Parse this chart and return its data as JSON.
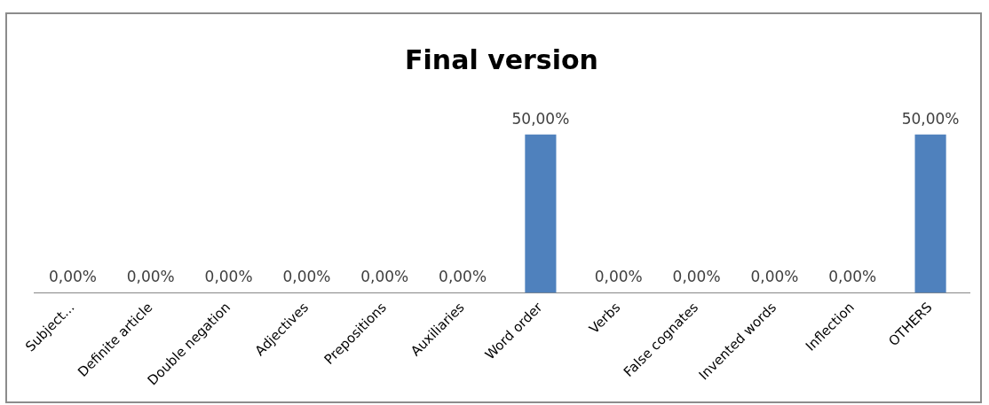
{
  "chart_data": {
    "type": "bar",
    "title": "Final version",
    "categories": [
      "Subject...",
      "Definite article",
      "Double negation",
      "Adjectives",
      "Prepositions",
      "Auxiliaries",
      "Word order",
      "Verbs",
      "False cognates",
      "Invented words",
      "Inflection",
      "OTHERS"
    ],
    "values": [
      0,
      0,
      0,
      0,
      0,
      0,
      50,
      0,
      0,
      0,
      0,
      50
    ],
    "value_labels": [
      "0,00%",
      "0,00%",
      "0,00%",
      "0,00%",
      "0,00%",
      "0,00%",
      "50,00%",
      "0,00%",
      "0,00%",
      "0,00%",
      "0,00%",
      "50,00%"
    ],
    "color": "#4f81bd",
    "grid": false,
    "legend": false,
    "tick_labels": "x"
  }
}
